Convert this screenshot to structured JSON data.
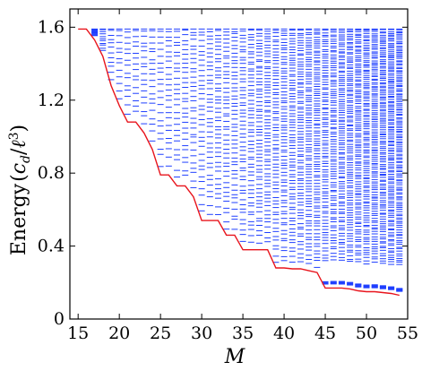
{
  "chart_data": {
    "type": "scatter",
    "xlabel": "M",
    "ylabel": "Energy (c_d/ℓ³)",
    "ylabel_parts": {
      "prefix": "Energy",
      "open": "(",
      "c": "c",
      "sub": "d",
      "slash": "/",
      "ell": "ℓ",
      "sup": "3",
      "close": ")"
    },
    "xlim": [
      14,
      55
    ],
    "ylim": [
      0,
      1.7
    ],
    "x_ticks": [
      15,
      20,
      25,
      30,
      35,
      40,
      45,
      50,
      55
    ],
    "y_ticks": [
      0,
      0.4,
      0.8,
      1.2,
      1.6
    ],
    "grid": false,
    "series": [
      {
        "kind": "levels",
        "color": "#1f3fff",
        "x_range": [
          17,
          54
        ],
        "top": 1.59,
        "ground_state": [
          [
            17,
            1.53
          ],
          [
            18,
            1.44
          ],
          [
            19,
            1.28
          ],
          [
            20,
            1.17
          ],
          [
            21,
            1.08
          ],
          [
            22,
            1.08
          ],
          [
            23,
            1.02
          ],
          [
            24,
            0.93
          ],
          [
            25,
            0.79
          ],
          [
            26,
            0.79
          ],
          [
            27,
            0.73
          ],
          [
            28,
            0.73
          ],
          [
            29,
            0.67
          ],
          [
            30,
            0.54
          ],
          [
            31,
            0.54
          ],
          [
            32,
            0.54
          ],
          [
            33,
            0.46
          ],
          [
            34,
            0.46
          ],
          [
            35,
            0.38
          ],
          [
            36,
            0.38
          ],
          [
            37,
            0.38
          ],
          [
            38,
            0.38
          ],
          [
            39,
            0.28
          ],
          [
            40,
            0.28
          ],
          [
            41,
            0.275
          ],
          [
            42,
            0.275
          ],
          [
            43,
            0.265
          ],
          [
            44,
            0.255
          ],
          [
            45,
            0.17
          ],
          [
            46,
            0.17
          ],
          [
            47,
            0.17
          ],
          [
            48,
            0.165
          ],
          [
            49,
            0.155
          ],
          [
            50,
            0.15
          ],
          [
            51,
            0.15
          ],
          [
            52,
            0.145
          ],
          [
            53,
            0.14
          ],
          [
            54,
            0.13
          ]
        ]
      },
      {
        "kind": "ground_state_line",
        "color": "#e8141c",
        "points": [
          [
            15,
            1.59
          ],
          [
            16,
            1.59
          ],
          [
            17,
            1.53
          ],
          [
            18,
            1.44
          ],
          [
            19,
            1.28
          ],
          [
            20,
            1.17
          ],
          [
            21,
            1.08
          ],
          [
            22,
            1.08
          ],
          [
            23,
            1.02
          ],
          [
            24,
            0.93
          ],
          [
            25,
            0.79
          ],
          [
            26,
            0.79
          ],
          [
            27,
            0.73
          ],
          [
            28,
            0.73
          ],
          [
            29,
            0.67
          ],
          [
            30,
            0.54
          ],
          [
            31,
            0.54
          ],
          [
            32,
            0.54
          ],
          [
            33,
            0.46
          ],
          [
            34,
            0.46
          ],
          [
            35,
            0.38
          ],
          [
            36,
            0.38
          ],
          [
            37,
            0.38
          ],
          [
            38,
            0.38
          ],
          [
            39,
            0.28
          ],
          [
            40,
            0.28
          ],
          [
            41,
            0.275
          ],
          [
            42,
            0.275
          ],
          [
            43,
            0.265
          ],
          [
            44,
            0.255
          ],
          [
            45,
            0.17
          ],
          [
            46,
            0.17
          ],
          [
            47,
            0.17
          ],
          [
            48,
            0.165
          ],
          [
            49,
            0.155
          ],
          [
            50,
            0.15
          ],
          [
            51,
            0.15
          ],
          [
            52,
            0.145
          ],
          [
            53,
            0.14
          ],
          [
            54,
            0.13
          ]
        ]
      }
    ]
  }
}
